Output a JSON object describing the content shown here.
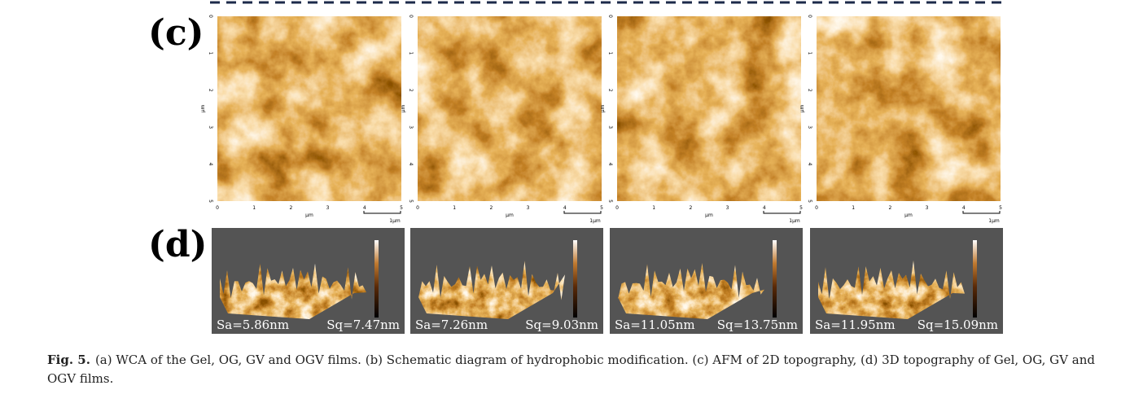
{
  "panel_labels": {
    "c": "(c)",
    "d": "(d)"
  },
  "afm_2d": {
    "ticks": [
      "0",
      "1",
      "2",
      "3",
      "4",
      "5"
    ],
    "unit": "µm",
    "scale_bar": "1µm",
    "panel_count": 4
  },
  "afm_3d": [
    {
      "sa": "Sa=5.86nm",
      "sq": "Sq=7.47nm"
    },
    {
      "sa": "Sa=7.26nm",
      "sq": "Sq=9.03nm"
    },
    {
      "sa": "Sa=11.05nm",
      "sq": "Sq=13.75nm"
    },
    {
      "sa": "Sa=11.95nm",
      "sq": "Sq=15.09nm"
    }
  ],
  "caption": {
    "label": "Fig. 5.",
    "text": "(a) WCA of the Gel, OG, GV and OGV films. (b) Schematic diagram of hydrophobic modification. (c) AFM of 2D topography, (d) 3D topography of Gel, OG, GV and OGV films."
  }
}
